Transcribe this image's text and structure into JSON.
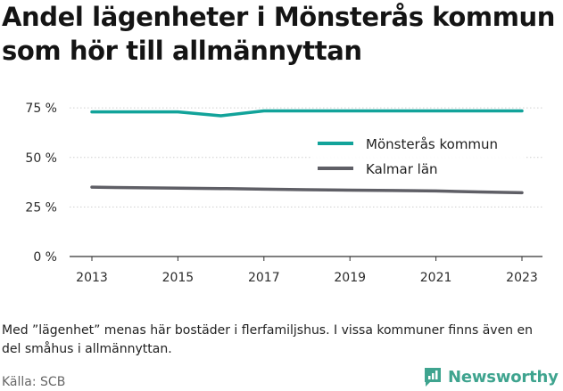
{
  "title": "Andel lägenheter i Mönsterås kommun som hör till allmännyttan",
  "note": "Med ”lägenhet” menas här bostäder i flerfamiljshus. I vissa kommuner finns även en del småhus i allmännyttan.",
  "source": "Källa: SCB",
  "brand": "Newsworthy",
  "colors": {
    "teal": "#12a39a",
    "gray": "#5f5f66",
    "brand": "#3fa48f",
    "axis": "#333333"
  },
  "chart_data": {
    "type": "line",
    "x": [
      2013,
      2014,
      2015,
      2016,
      2017,
      2018,
      2019,
      2020,
      2021,
      2022,
      2023
    ],
    "xticks": [
      2013,
      2015,
      2017,
      2019,
      2021,
      2023
    ],
    "ylim": [
      0,
      0.8
    ],
    "yticks": [
      0,
      0.25,
      0.5,
      0.75
    ],
    "ytick_labels": [
      "0 %",
      "25 %",
      "50 %",
      "75 %"
    ],
    "legend_position": "top-right",
    "series": [
      {
        "name": "Mönsterås kommun",
        "color": "#12a39a",
        "values": [
          0.73,
          0.73,
          0.73,
          0.71,
          0.735,
          0.735,
          0.735,
          0.735,
          0.735,
          0.735,
          0.735
        ]
      },
      {
        "name": "Kalmar län",
        "color": "#5f5f66",
        "values": [
          0.35,
          0.347,
          0.345,
          0.343,
          0.34,
          0.337,
          0.335,
          0.333,
          0.331,
          0.326,
          0.322
        ]
      }
    ]
  }
}
